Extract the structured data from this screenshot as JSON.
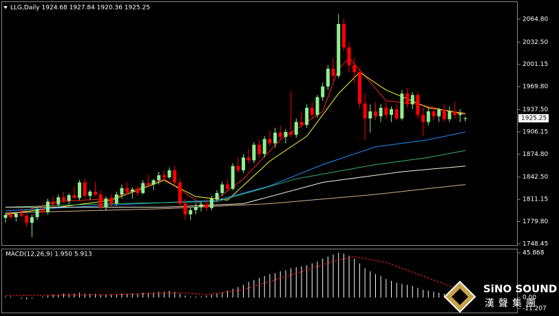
{
  "header": "LLG,Daily  1924.68 1927.84 1920.36 1925.25",
  "watermark": "SiNO SOUND",
  "watermark_cn": "漢聲集團",
  "chart_data": [
    {
      "type": "candlestick",
      "last_price": 1925.25,
      "bull_color": "#90ee90",
      "bear_color": "#ff0000",
      "ylim": [
        1745.5,
        2091.8
      ],
      "yticks": [
        {
          "value": 2064.8,
          "label": "2064.80"
        },
        {
          "value": 2032.5,
          "label": "2032.50"
        },
        2001.15,
        {
          "value": 1969.8,
          "label": "1969.80"
        },
        {
          "value": 1937.5,
          "label": "1937.50"
        },
        1906.15,
        {
          "value": 1874.8,
          "label": "1874.80"
        },
        {
          "value": 1842.5,
          "label": "1842.50"
        },
        1811.15,
        {
          "value": 1779.8,
          "label": "1779.80"
        },
        1748.45
      ],
      "candles": [
        [
          1785,
          1792,
          1778,
          1789
        ],
        [
          1789,
          1795,
          1783,
          1786
        ],
        [
          1786,
          1794,
          1780,
          1791
        ],
        [
          1791,
          1797,
          1786,
          1788
        ],
        [
          1788,
          1792,
          1772,
          1778
        ],
        [
          1778,
          1790,
          1758,
          1786
        ],
        [
          1786,
          1800,
          1782,
          1797
        ],
        [
          1797,
          1805,
          1790,
          1793
        ],
        [
          1793,
          1812,
          1790,
          1808
        ],
        [
          1808,
          1815,
          1800,
          1804
        ],
        [
          1804,
          1818,
          1800,
          1814
        ],
        [
          1814,
          1822,
          1806,
          1809
        ],
        [
          1809,
          1820,
          1804,
          1817
        ],
        [
          1817,
          1830,
          1812,
          1813
        ],
        [
          1813,
          1838,
          1810,
          1835
        ],
        [
          1835,
          1840,
          1812,
          1816
        ],
        [
          1816,
          1825,
          1810,
          1822
        ],
        [
          1822,
          1836,
          1815,
          1818
        ],
        [
          1818,
          1824,
          1796,
          1800
        ],
        [
          1800,
          1815,
          1795,
          1812
        ],
        [
          1812,
          1818,
          1800,
          1805
        ],
        [
          1805,
          1822,
          1802,
          1818
        ],
        [
          1818,
          1832,
          1812,
          1827
        ],
        [
          1827,
          1835,
          1818,
          1822
        ],
        [
          1822,
          1828,
          1812,
          1825
        ],
        [
          1825,
          1830,
          1816,
          1820
        ],
        [
          1820,
          1838,
          1818,
          1834
        ],
        [
          1834,
          1846,
          1828,
          1832
        ],
        [
          1832,
          1840,
          1824,
          1838
        ],
        [
          1838,
          1850,
          1832,
          1845
        ],
        [
          1845,
          1852,
          1838,
          1842
        ],
        [
          1842,
          1856,
          1840,
          1852
        ],
        [
          1852,
          1858,
          1830,
          1835
        ],
        [
          1835,
          1840,
          1800,
          1805
        ],
        [
          1805,
          1812,
          1782,
          1790
        ],
        [
          1790,
          1800,
          1782,
          1796
        ],
        [
          1796,
          1806,
          1790,
          1800
        ],
        [
          1800,
          1808,
          1794,
          1804
        ],
        [
          1804,
          1812,
          1795,
          1799
        ],
        [
          1799,
          1816,
          1796,
          1812
        ],
        [
          1812,
          1824,
          1808,
          1820
        ],
        [
          1820,
          1836,
          1816,
          1832
        ],
        [
          1832,
          1840,
          1822,
          1826
        ],
        [
          1826,
          1862,
          1824,
          1858
        ],
        [
          1858,
          1870,
          1848,
          1852
        ],
        [
          1852,
          1875,
          1848,
          1870
        ],
        [
          1870,
          1882,
          1862,
          1866
        ],
        [
          1866,
          1892,
          1862,
          1888
        ],
        [
          1888,
          1895,
          1870,
          1875
        ],
        [
          1875,
          1900,
          1870,
          1896
        ],
        [
          1896,
          1908,
          1886,
          1890
        ],
        [
          1890,
          1912,
          1884,
          1905
        ],
        [
          1905,
          1915,
          1895,
          1899
        ],
        [
          1899,
          1910,
          1890,
          1906
        ],
        [
          1906,
          1963,
          1898,
          1902
        ],
        [
          1902,
          1925,
          1898,
          1920
        ],
        [
          1920,
          1935,
          1912,
          1916
        ],
        [
          1916,
          1945,
          1912,
          1940
        ],
        [
          1940,
          1948,
          1925,
          1930
        ],
        [
          1930,
          1958,
          1926,
          1955
        ],
        [
          1955,
          1975,
          1950,
          1970
        ],
        [
          1970,
          2000,
          1965,
          1995
        ],
        [
          1995,
          2010,
          1978,
          1985
        ],
        [
          1985,
          2072,
          1982,
          2058
        ],
        [
          2058,
          2066,
          2020,
          2025
        ],
        [
          2025,
          2032,
          1990,
          2000
        ],
        [
          2000,
          2010,
          1975,
          1990
        ],
        [
          1990,
          1995,
          1940,
          1946
        ],
        [
          1946,
          1960,
          1895,
          1925
        ],
        [
          1925,
          1945,
          1905,
          1935
        ],
        [
          1935,
          1948,
          1922,
          1928
        ],
        [
          1928,
          1945,
          1920,
          1940
        ],
        [
          1940,
          1948,
          1925,
          1930
        ],
        [
          1930,
          1942,
          1920,
          1938
        ],
        [
          1938,
          1945,
          1922,
          1925
        ],
        [
          1925,
          1965,
          1922,
          1960
        ],
        [
          1960,
          1968,
          1940,
          1945
        ],
        [
          1945,
          1962,
          1938,
          1958
        ],
        [
          1958,
          1962,
          1925,
          1930
        ],
        [
          1930,
          1940,
          1900,
          1920
        ],
        [
          1920,
          1940,
          1915,
          1935
        ],
        [
          1935,
          1942,
          1922,
          1928
        ],
        [
          1928,
          1940,
          1920,
          1937
        ],
        [
          1937,
          1945,
          1920,
          1924
        ],
        [
          1924,
          1942,
          1920,
          1935
        ],
        [
          1935,
          1948,
          1925,
          1930
        ],
        [
          1930,
          1938,
          1920,
          1932
        ],
        [
          1924.68,
          1927.84,
          1920.36,
          1925.25
        ]
      ],
      "series": [
        {
          "color": "#ff2020",
          "x": [
            0,
            10,
            20,
            30,
            34,
            38,
            45,
            52,
            60,
            63,
            65,
            68,
            72,
            78,
            87
          ],
          "values": [
            1788,
            1808,
            1812,
            1840,
            1820,
            1800,
            1840,
            1895,
            1935,
            1995,
            2010,
            1985,
            1950,
            1945,
            1930
          ]
        },
        {
          "color": "#ffff40",
          "x": [
            0,
            10,
            20,
            30,
            36,
            42,
            50,
            57,
            63,
            67,
            72,
            80,
            87
          ],
          "values": [
            1790,
            1800,
            1810,
            1838,
            1815,
            1810,
            1865,
            1900,
            1960,
            1990,
            1965,
            1940,
            1932
          ]
        },
        {
          "color": "#1e90ff",
          "x": [
            0,
            20,
            40,
            50,
            60,
            70,
            80,
            87
          ],
          "values": [
            1795,
            1803,
            1810,
            1830,
            1860,
            1885,
            1895,
            1906
          ]
        },
        {
          "color": "#3cb371",
          "x": [
            0,
            20,
            40,
            55,
            70,
            80,
            87
          ],
          "values": [
            1800,
            1805,
            1808,
            1840,
            1860,
            1870,
            1880
          ]
        },
        {
          "color": "#f5f5dc",
          "x": [
            0,
            30,
            45,
            60,
            75,
            87
          ],
          "values": [
            1800,
            1800,
            1805,
            1835,
            1850,
            1858
          ]
        },
        {
          "color": "#d2b48c",
          "x": [
            0,
            30,
            50,
            70,
            87
          ],
          "values": [
            1792,
            1798,
            1805,
            1818,
            1832
          ]
        }
      ]
    },
    {
      "type": "macd",
      "title": "MACD(12,26,9) 1.950 5.913",
      "ylim": [
        -15.4,
        50.1
      ],
      "yticks": [
        45.868,
        {
          "value": 0,
          "label": "0.00"
        },
        -11.207
      ],
      "hist_color": "#ffffff",
      "signal_color": "#ff2020",
      "histogram": [
        1,
        1,
        0,
        -1,
        -2,
        -1,
        0,
        1,
        2,
        3,
        3,
        4,
        4,
        4,
        5,
        4,
        4,
        4,
        3,
        3,
        3,
        3,
        4,
        4,
        4,
        4,
        5,
        5,
        5,
        6,
        6,
        7,
        6,
        4,
        2,
        1,
        1,
        1,
        2,
        3,
        4,
        5,
        7,
        9,
        11,
        13,
        16,
        18,
        20,
        22,
        24,
        25,
        27,
        28,
        30,
        31,
        32,
        33,
        35,
        37,
        40,
        42,
        44,
        46,
        45,
        43,
        40,
        35,
        30,
        27,
        24,
        22,
        19,
        17,
        15,
        14,
        13,
        12,
        10,
        8,
        7,
        6,
        5,
        4,
        3,
        2.5,
        2.2,
        1.95
      ],
      "signal": {
        "x": [
          0,
          20,
          33,
          38,
          45,
          55,
          62,
          66,
          72,
          80,
          87
        ],
        "values": [
          2,
          3,
          5,
          3,
          8,
          25,
          37,
          42,
          36,
          20,
          5.913
        ]
      }
    }
  ]
}
